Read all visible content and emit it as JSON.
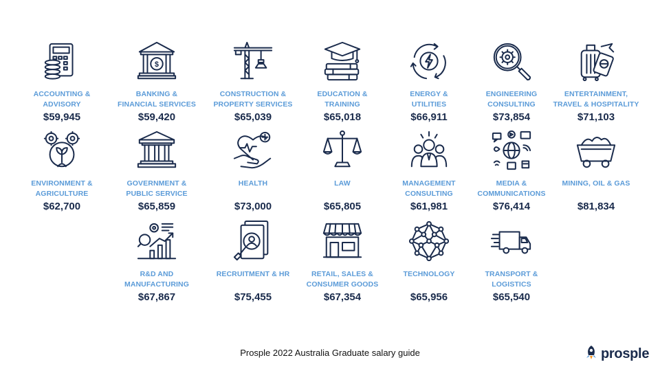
{
  "sectors": [
    {
      "name": "Accounting &\nAdvisory",
      "salary": "$59,945",
      "icon": "calculator-coins-icon"
    },
    {
      "name": "Banking &\nFinancial Services",
      "salary": "$59,420",
      "icon": "bank-icon"
    },
    {
      "name": "Construction &\nProperty Services",
      "salary": "$65,039",
      "icon": "crane-icon"
    },
    {
      "name": "Education &\nTraining",
      "salary": "$65,018",
      "icon": "graduation-cap-books-icon"
    },
    {
      "name": "Energy &\nUtilities",
      "salary": "$66,911",
      "icon": "energy-cycle-icon"
    },
    {
      "name": "Engineering\nConsulting",
      "salary": "$73,854",
      "icon": "gear-magnifier-icon"
    },
    {
      "name": "Entertainment,\nTravel & Hospitality",
      "salary": "$71,103",
      "icon": "luggage-passport-icon"
    },
    {
      "name": "Environment &\nAgriculture",
      "salary": "$62,700",
      "icon": "gears-leaf-icon"
    },
    {
      "name": "Government &\nPublic Service",
      "salary": "$65,859",
      "icon": "government-building-icon"
    },
    {
      "name": "Health",
      "salary": "$73,000",
      "icon": "heart-hand-icon"
    },
    {
      "name": "Law",
      "salary": "$65,805",
      "icon": "scales-icon"
    },
    {
      "name": "Management\nConsulting",
      "salary": "$61,981",
      "icon": "team-icon"
    },
    {
      "name": "Media &\nCommunications",
      "salary": "$76,414",
      "icon": "media-globe-icon"
    },
    {
      "name": "Mining, Oil & Gas",
      "salary": "$81,834",
      "icon": "mine-cart-icon"
    },
    {
      "name": "R&D and\nManufacturing",
      "salary": "$67,867",
      "icon": "research-growth-icon"
    },
    {
      "name": "Recruitment & HR",
      "salary": "$75,455",
      "icon": "candidate-search-icon"
    },
    {
      "name": "Retail, Sales &\nConsumer Goods",
      "salary": "$67,354",
      "icon": "storefront-icon"
    },
    {
      "name": "Technology",
      "salary": "$65,956",
      "icon": "network-sphere-icon"
    },
    {
      "name": "Transport &\nLogistics",
      "salary": "$65,540",
      "icon": "delivery-truck-icon"
    }
  ],
  "footer": {
    "caption": "Prosple 2022 Australia Graduate salary guide"
  },
  "brand": {
    "name": "prosple",
    "icon": "rocket-icon",
    "accent": "#5b9bd8",
    "navy": "#1a2b4c",
    "orange": "#f7931e"
  }
}
